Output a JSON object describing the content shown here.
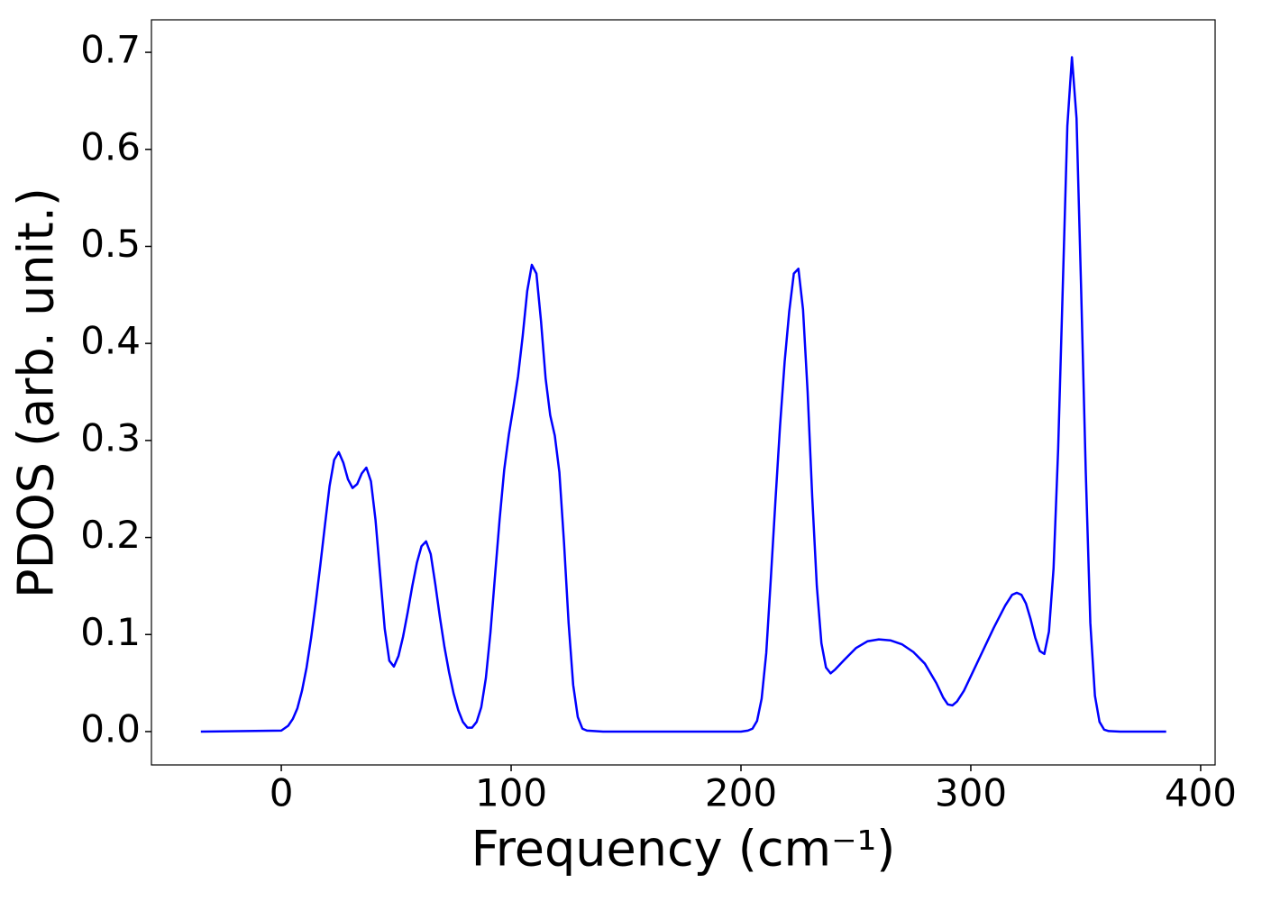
{
  "chart_data": {
    "type": "line",
    "xlabel": "Frequency (cm⁻¹)",
    "ylabel": "PDOS (arb. unit.)",
    "xlim": [
      -56.5,
      406.3
    ],
    "ylim": [
      -0.0344,
      0.7335
    ],
    "xticks": [
      0,
      100,
      200,
      300,
      400
    ],
    "yticks": [
      {
        "value": 0,
        "label": "0.0"
      },
      0.1,
      0.2,
      0.3,
      0.4,
      0.5,
      0.6,
      0.7
    ],
    "series": [
      {
        "color": "#0000ff",
        "x": [
          -35,
          0,
          3,
          5,
          7,
          9,
          11,
          13,
          15,
          17,
          19,
          21,
          23,
          25,
          27,
          29,
          31,
          33,
          35,
          37,
          39,
          41,
          43,
          45,
          47,
          49,
          51,
          53,
          55,
          57,
          59,
          61,
          63,
          65,
          67,
          69,
          71,
          73,
          75,
          77,
          79,
          81,
          83,
          85,
          87,
          89,
          91,
          93,
          95,
          97,
          99,
          101,
          103,
          105,
          107,
          109,
          111,
          113,
          115,
          117,
          119,
          121,
          123,
          125,
          127,
          129,
          131,
          133,
          140,
          200,
          203,
          205,
          207,
          209,
          211,
          213,
          215,
          217,
          219,
          221,
          223,
          225,
          227,
          229,
          231,
          233,
          235,
          237,
          239,
          241,
          245,
          250,
          255,
          260,
          265,
          270,
          275,
          280,
          285,
          288,
          290,
          292,
          294,
          297,
          300,
          305,
          310,
          315,
          318,
          320,
          322,
          324,
          326,
          328,
          330,
          332,
          334,
          336,
          338,
          340,
          342,
          344,
          346,
          348,
          350,
          352,
          354,
          356,
          358,
          360,
          365,
          385
        ],
        "values": [
          0,
          0.001,
          0.006,
          0.013,
          0.024,
          0.042,
          0.066,
          0.097,
          0.133,
          0.172,
          0.213,
          0.253,
          0.28,
          0.288,
          0.277,
          0.26,
          0.251,
          0.255,
          0.266,
          0.272,
          0.258,
          0.218,
          0.162,
          0.106,
          0.073,
          0.067,
          0.078,
          0.098,
          0.123,
          0.15,
          0.174,
          0.191,
          0.196,
          0.183,
          0.152,
          0.118,
          0.087,
          0.061,
          0.039,
          0.022,
          0.01,
          0.004,
          0.004,
          0.01,
          0.025,
          0.055,
          0.102,
          0.161,
          0.219,
          0.27,
          0.306,
          0.335,
          0.366,
          0.407,
          0.454,
          0.481,
          0.472,
          0.423,
          0.364,
          0.326,
          0.305,
          0.267,
          0.195,
          0.112,
          0.048,
          0.015,
          0.003,
          0.001,
          0,
          0,
          0.001,
          0.003,
          0.011,
          0.034,
          0.081,
          0.158,
          0.238,
          0.315,
          0.381,
          0.433,
          0.472,
          0.477,
          0.435,
          0.35,
          0.242,
          0.15,
          0.091,
          0.066,
          0.06,
          0.064,
          0.074,
          0.086,
          0.093,
          0.095,
          0.094,
          0.09,
          0.082,
          0.07,
          0.05,
          0.035,
          0.028,
          0.027,
          0.031,
          0.042,
          0.057,
          0.082,
          0.107,
          0.13,
          0.141,
          0.143,
          0.141,
          0.132,
          0.116,
          0.097,
          0.083,
          0.08,
          0.103,
          0.168,
          0.291,
          0.457,
          0.624,
          0.695,
          0.632,
          0.456,
          0.269,
          0.112,
          0.037,
          0.01,
          0.002,
          0.0005,
          0,
          0
        ]
      }
    ]
  }
}
